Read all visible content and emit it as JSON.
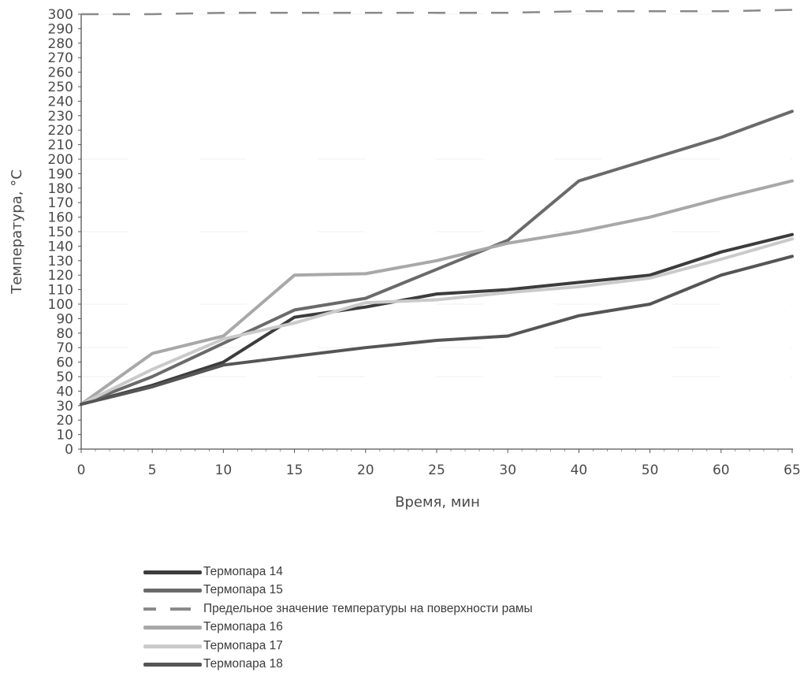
{
  "chart_data": {
    "type": "line",
    "xlabel": "Время, мин",
    "ylabel": "Температура, °С",
    "categories": [
      "0",
      "5",
      "10",
      "15",
      "20",
      "25",
      "30",
      "40",
      "50",
      "60",
      "65"
    ],
    "ylim": [
      0,
      300
    ],
    "yticks": [
      0,
      10,
      20,
      30,
      40,
      50,
      60,
      70,
      80,
      90,
      100,
      110,
      120,
      130,
      140,
      150,
      160,
      170,
      180,
      190,
      200,
      210,
      220,
      230,
      240,
      250,
      260,
      270,
      280,
      290,
      300
    ],
    "grid": false,
    "legend_position": "bottom",
    "series": [
      {
        "name": "Термопара 14",
        "color": "#3c3c3c",
        "style": "solid",
        "values": [
          31,
          44,
          60,
          91,
          98,
          107,
          110,
          115,
          120,
          136,
          148
        ]
      },
      {
        "name": "Термопара 15",
        "color": "#6a6a6a",
        "style": "solid",
        "values": [
          31,
          50,
          73,
          96,
          104,
          124,
          144,
          185,
          200,
          215,
          233
        ]
      },
      {
        "name": "Предельное значение температуры на поверхности рамы",
        "color": "#8a8a8a",
        "style": "dashed",
        "values": [
          300,
          300,
          301,
          301,
          301,
          301,
          301,
          302,
          302,
          302,
          303
        ]
      },
      {
        "name": "Термопара 16",
        "color": "#a8a8a8",
        "style": "solid",
        "values": [
          31,
          66,
          78,
          120,
          121,
          130,
          142,
          150,
          160,
          173,
          185
        ]
      },
      {
        "name": "Термопара 17",
        "color": "#cacaca",
        "style": "solid",
        "values": [
          31,
          55,
          76,
          87,
          101,
          103,
          108,
          112,
          118,
          131,
          145
        ]
      },
      {
        "name": "Термопара 18",
        "color": "#555555",
        "style": "solid",
        "values": [
          31,
          43,
          58,
          64,
          70,
          75,
          78,
          92,
          100,
          120,
          133
        ]
      }
    ]
  }
}
